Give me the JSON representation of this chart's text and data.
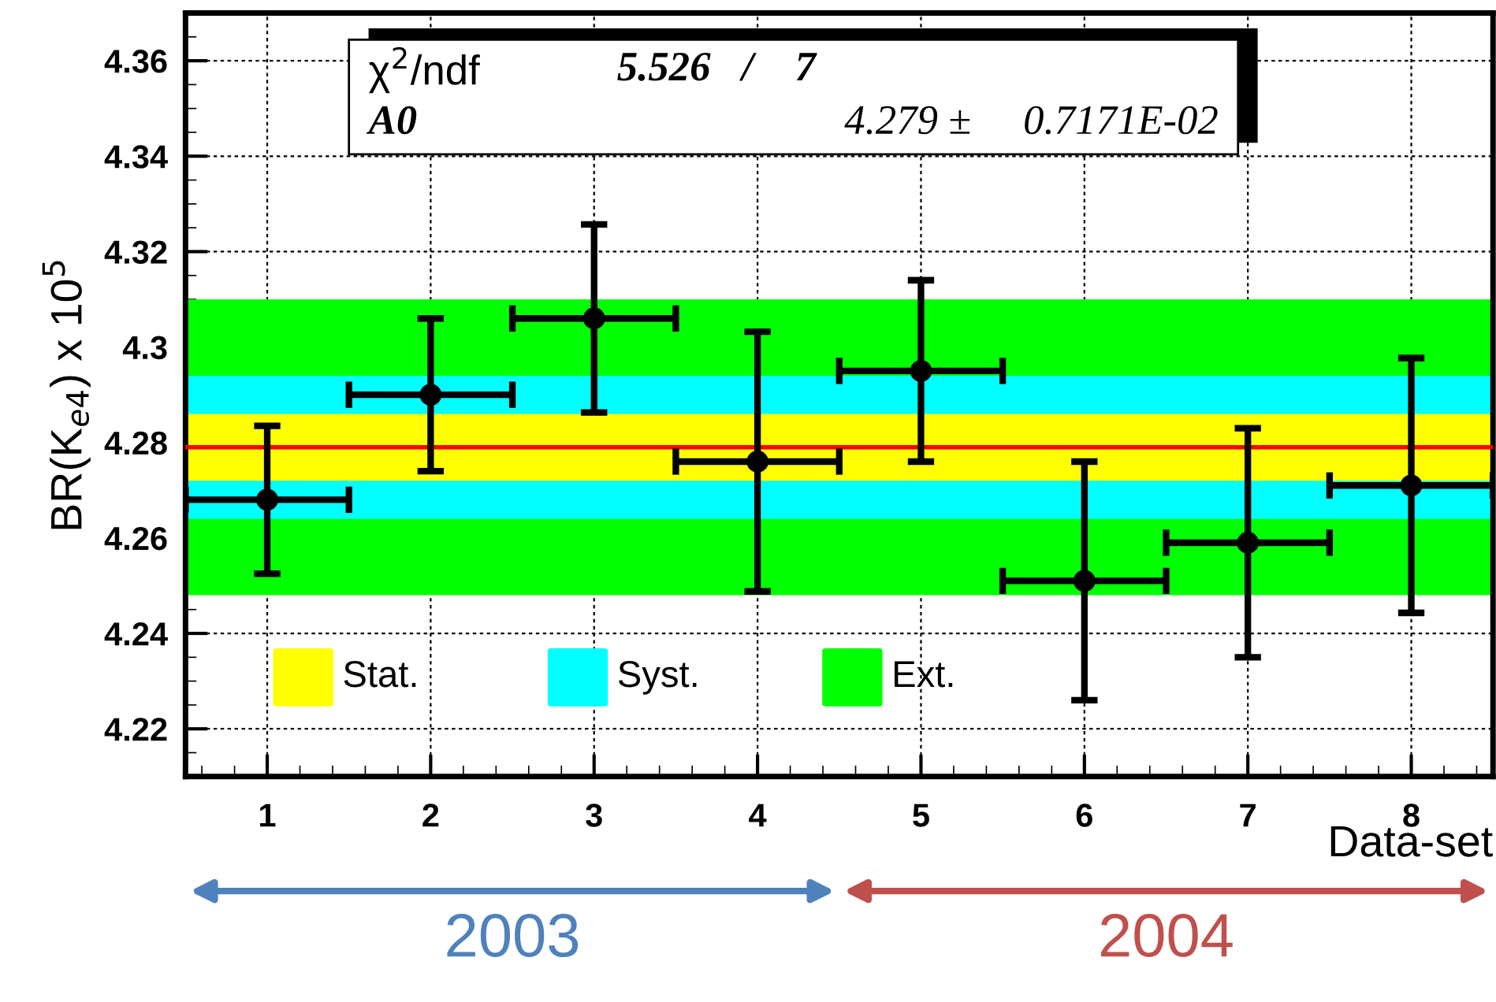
{
  "chart_data": {
    "type": "scatter",
    "ylabel": "BR(K$_{e4}$) x 10$^{5}$",
    "xlabel": "Data-set",
    "x": [
      1,
      2,
      3,
      4,
      5,
      6,
      7,
      8
    ],
    "series": [
      {
        "color": "#000000",
        "values": [
          4.268,
          4.29,
          4.306,
          4.276,
          4.295,
          4.251,
          4.259,
          4.271
        ],
        "errors": [
          0.0155,
          0.016,
          0.0197,
          0.0272,
          0.019,
          0.025,
          0.024,
          0.0267
        ],
        "xerrors": [
          0.5,
          0.5,
          0.5,
          0.5,
          0.5,
          0.5,
          0.5,
          0.5
        ]
      }
    ],
    "xlim": [
      0.5,
      8.5
    ],
    "xticks": [
      1,
      2,
      3,
      4,
      5,
      6,
      7,
      8
    ],
    "ylim": [
      4.21,
      4.37
    ],
    "yticks": [
      4.22,
      4.24,
      4.26,
      4.28,
      4.3,
      4.32,
      4.34,
      4.36
    ],
    "bands": [
      {
        "axis": "y",
        "from": 4.248,
        "to": 4.31,
        "label": "Ext.",
        "color": "#00ff00"
      },
      {
        "axis": "y",
        "from": 4.264,
        "to": 4.294,
        "label": "Syst.",
        "color": "#00ffff"
      },
      {
        "axis": "y",
        "from": 4.272,
        "to": 4.286,
        "label": "Stat.",
        "color": "#ffff00"
      }
    ],
    "ref_lines": [
      {
        "axis": "y",
        "value": 4.279,
        "color": "#ff0000",
        "line_style": "solid"
      }
    ],
    "annotations": [
      "χ$^{2}$/ndf",
      "5.526   /    7",
      "A0",
      "4.279 ±     0.7171E-02",
      "2003",
      "2004"
    ],
    "grid": true,
    "marker": "circle",
    "legend": "bottom left"
  }
}
